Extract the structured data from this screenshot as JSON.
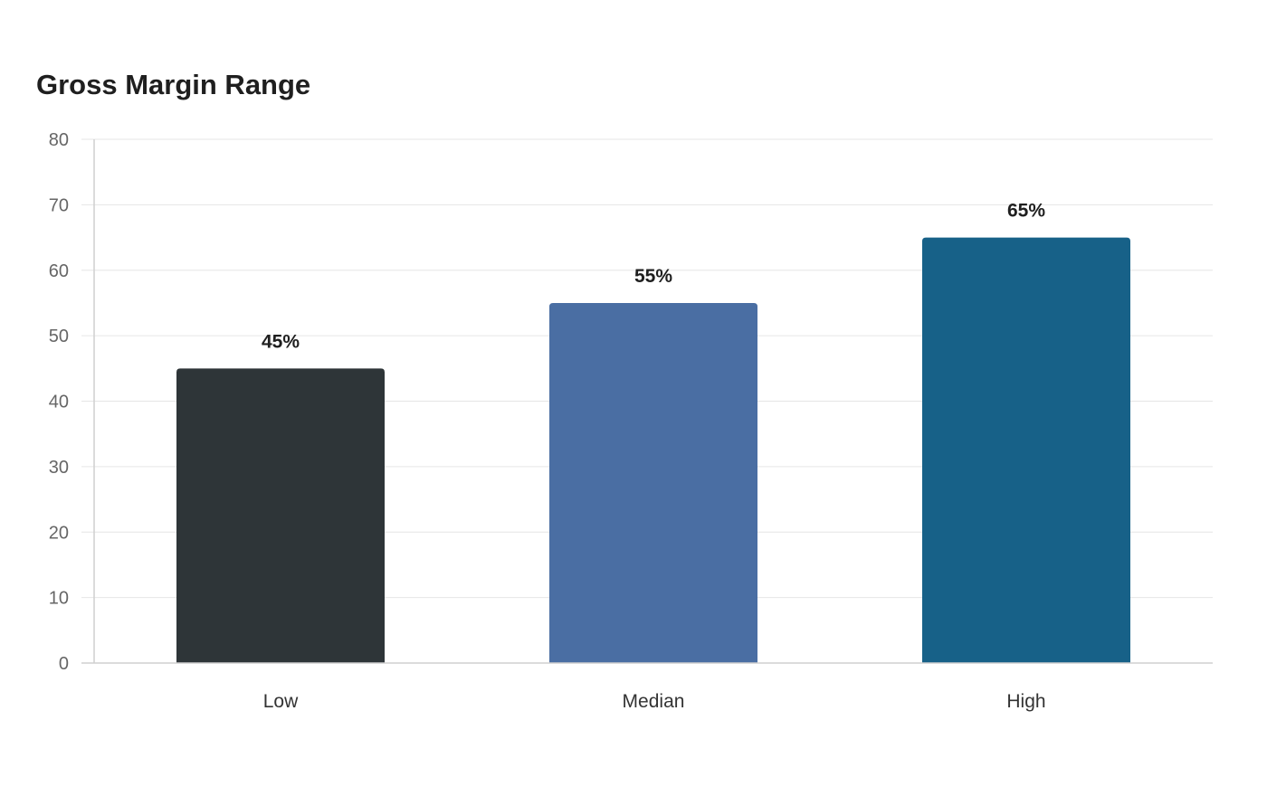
{
  "chart_data": {
    "type": "bar",
    "title": "Gross Margin Range",
    "xlabel": "",
    "ylabel": "",
    "categories": [
      "Low",
      "Median",
      "High"
    ],
    "values": [
      45,
      55,
      65
    ],
    "value_labels": [
      "45%",
      "55%",
      "65%"
    ],
    "colors": [
      "#2e3538",
      "#4a6ea3",
      "#176188"
    ],
    "ylim": [
      0,
      80
    ],
    "yticks": [
      "0",
      "10",
      "20",
      "30",
      "40",
      "50",
      "60",
      "70",
      "80"
    ],
    "grid": true,
    "legend": "none"
  }
}
